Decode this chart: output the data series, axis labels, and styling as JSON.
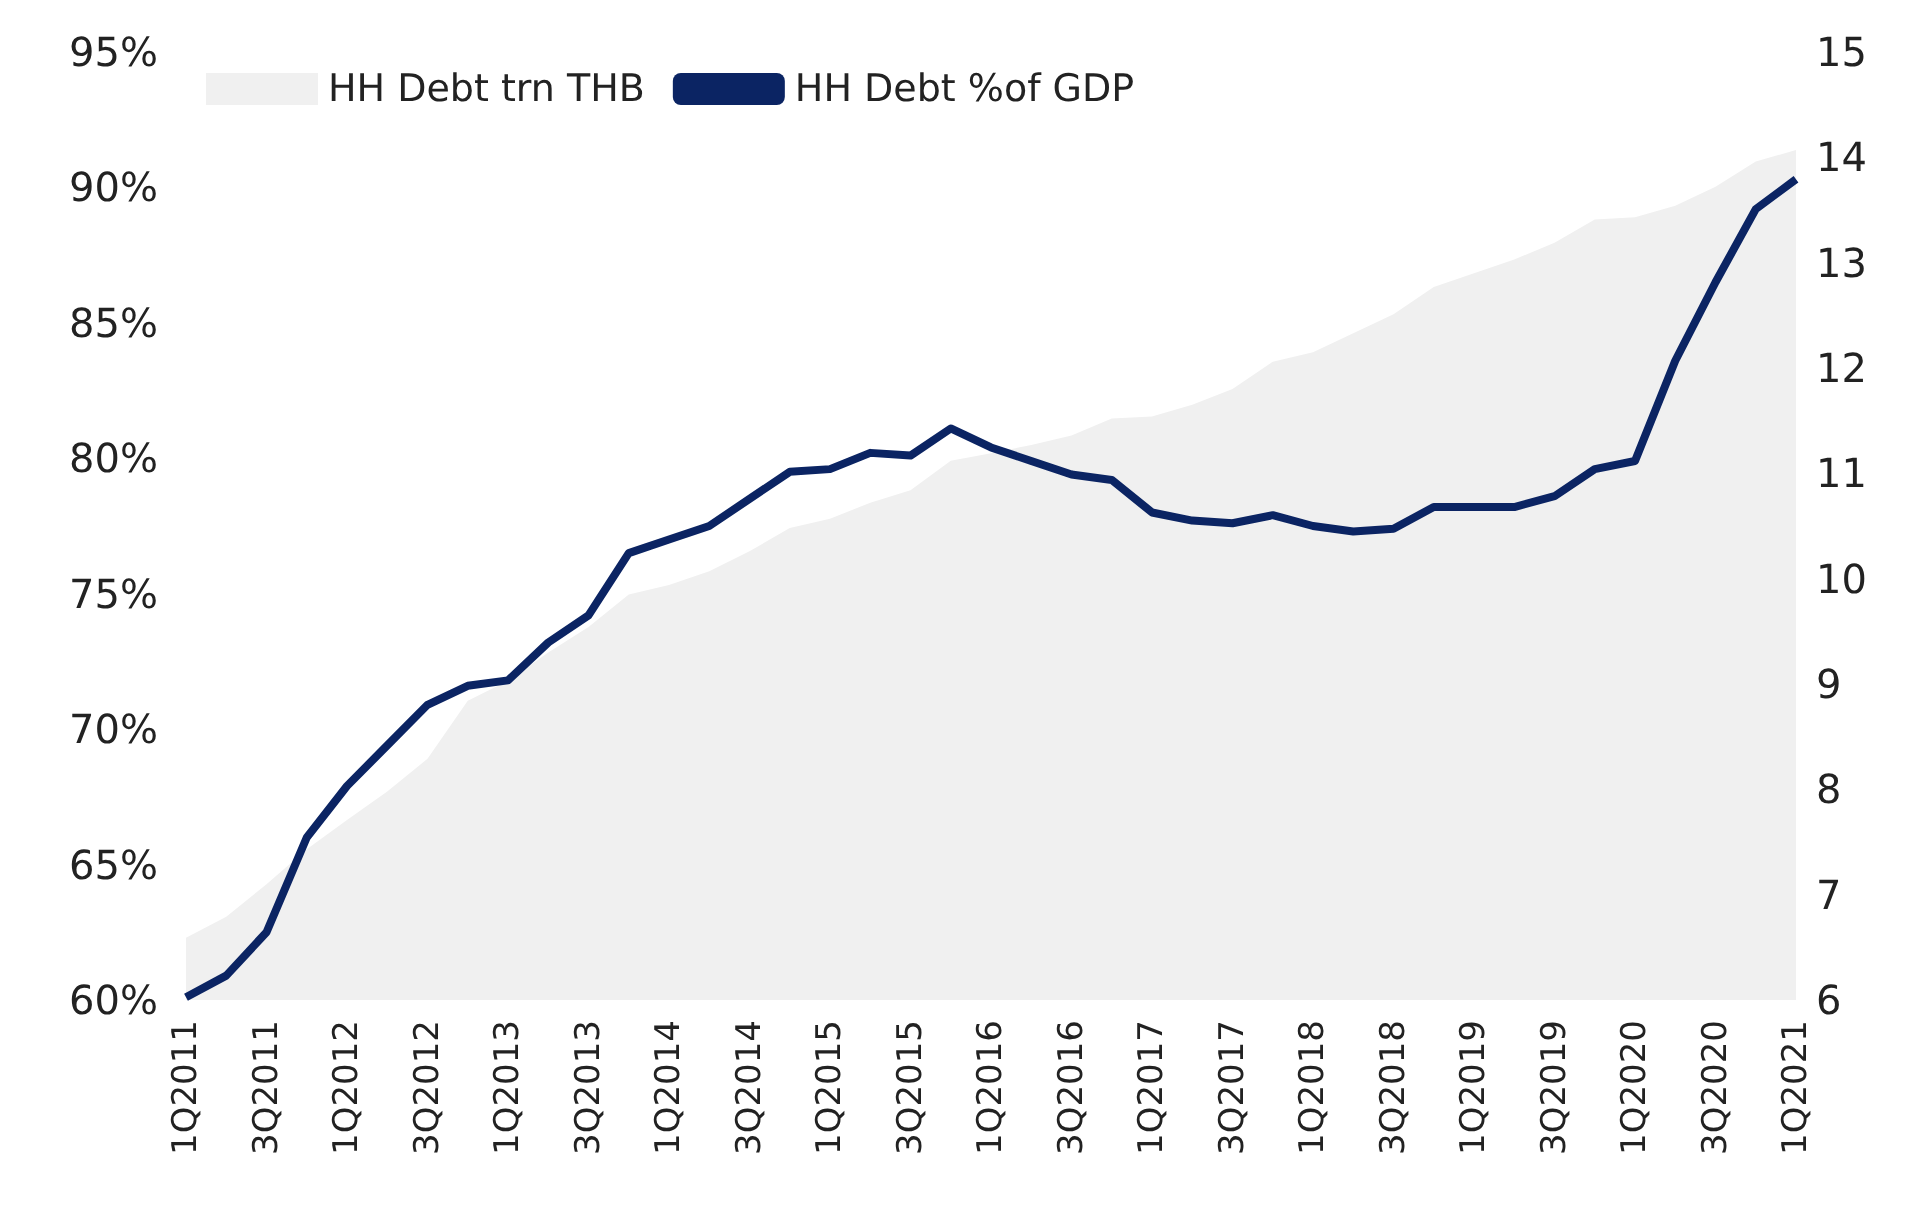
{
  "chart_data": {
    "type": "line",
    "categories": [
      "1Q2011",
      null,
      "3Q2011",
      null,
      "1Q2012",
      null,
      "3Q2012",
      null,
      "1Q2013",
      null,
      "3Q2013",
      null,
      "1Q2014",
      null,
      "3Q2014",
      null,
      "1Q2015",
      null,
      "3Q2015",
      null,
      "1Q2016",
      null,
      "3Q2016",
      null,
      "1Q2017",
      null,
      "3Q2017",
      null,
      "1Q2018",
      null,
      "3Q2018",
      null,
      "1Q2019",
      null,
      "3Q2019",
      null,
      "1Q2020",
      null,
      "3Q2020",
      null,
      "1Q2021"
    ],
    "series": [
      {
        "name": "HH Debt trn THB",
        "type": "area",
        "axis": "y2",
        "color": "#f0f0f0",
        "values": [
          6.59,
          6.79,
          7.1,
          7.43,
          7.71,
          7.98,
          8.29,
          8.84,
          9.03,
          9.3,
          9.54,
          9.85,
          9.94,
          10.07,
          10.26,
          10.48,
          10.57,
          10.72,
          10.84,
          11.12,
          11.19,
          11.27,
          11.36,
          11.52,
          11.54,
          11.65,
          11.8,
          12.06,
          12.15,
          12.33,
          12.51,
          12.77,
          12.9,
          13.03,
          13.19,
          13.41,
          13.43,
          13.54,
          13.72,
          13.96,
          14.07
        ]
      },
      {
        "name": "HH Debt %of GDP",
        "color": "#0b2463",
        "values": [
          60.1,
          60.9,
          62.5,
          66.0,
          67.9,
          69.4,
          70.9,
          71.6,
          71.8,
          73.2,
          74.2,
          76.5,
          77.0,
          77.5,
          78.5,
          79.5,
          79.6,
          80.2,
          80.1,
          81.1,
          80.4,
          79.9,
          79.4,
          79.2,
          78.0,
          77.7,
          77.6,
          77.9,
          77.5,
          77.3,
          77.4,
          78.2,
          78.2,
          78.2,
          78.6,
          79.6,
          79.9,
          83.6,
          86.5,
          89.2,
          90.3
        ]
      }
    ],
    "ylim": [
      60,
      95
    ],
    "yticks": [
      {
        "value": 60,
        "label": "60%"
      },
      {
        "value": 65,
        "label": "65%"
      },
      {
        "value": 70,
        "label": "70%"
      },
      {
        "value": 75,
        "label": "75%"
      },
      {
        "value": 80,
        "label": "80%"
      },
      {
        "value": 85,
        "label": "85%"
      },
      {
        "value": 90,
        "label": "90%"
      },
      {
        "value": 95,
        "label": "95%"
      }
    ],
    "y2lim": [
      6,
      15
    ],
    "y2ticks": [
      6,
      7,
      8,
      9,
      10,
      11,
      12,
      13,
      14,
      15
    ],
    "legend": "top left",
    "grid": false,
    "marker": "none",
    "line_style": "solid"
  }
}
